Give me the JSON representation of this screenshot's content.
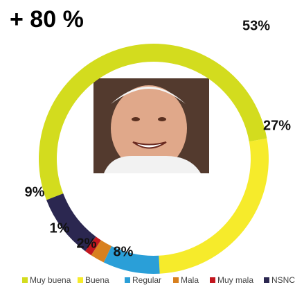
{
  "chart_data": {
    "type": "donut",
    "title": "+ 80 %",
    "categories": [
      "Muy buena",
      "Buena",
      "Regular",
      "Mala",
      "Muy mala",
      "NSNC"
    ],
    "values": [
      53,
      27,
      8,
      2,
      1,
      9
    ],
    "value_labels": [
      "53%",
      "27%",
      "8%",
      "2%",
      "1%",
      "9%"
    ],
    "colors": [
      "#d3dc1e",
      "#f6eb2b",
      "#2a9fd8",
      "#d8801f",
      "#c2161e",
      "#2b2750"
    ],
    "legend": "bottom"
  }
}
